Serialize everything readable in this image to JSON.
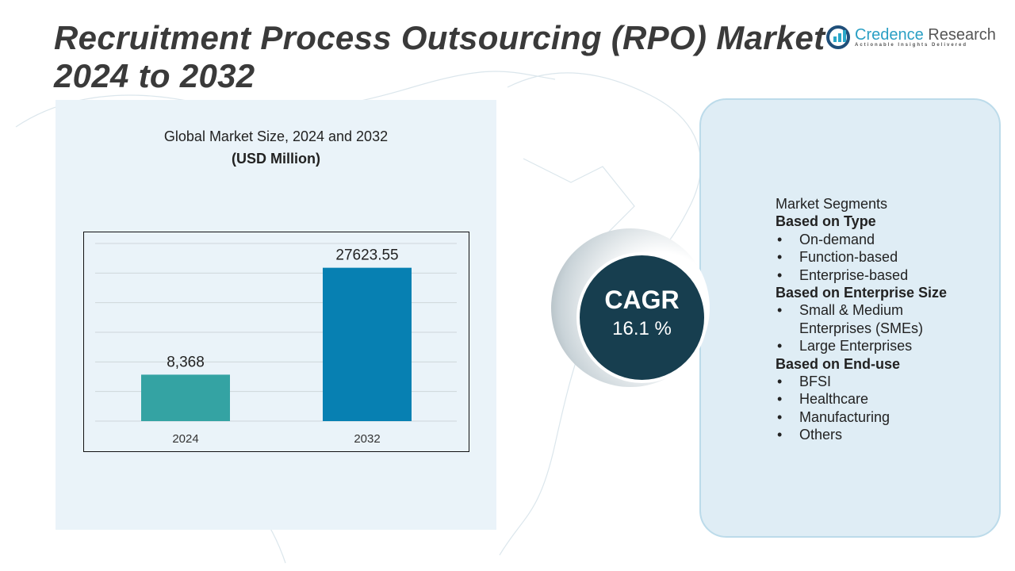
{
  "title": {
    "line1": "Recruitment Process Outsourcing (RPO) Market",
    "line2": "2024 to 2032"
  },
  "logo": {
    "name_part1": "Credence",
    "name_part2": "Research",
    "tagline": "Actionable Insights Delivered"
  },
  "chart_data": {
    "type": "bar",
    "title": "Global Market Size, 2024 and 2032",
    "subtitle": "(USD Million)",
    "categories": [
      "2024",
      "2032"
    ],
    "values": [
      8368,
      27623.55
    ],
    "data_labels": [
      "8,368",
      "27623.55"
    ],
    "colors": [
      "#34a3a3",
      "#0780b2"
    ],
    "grid": true,
    "ylim": [
      0,
      32000
    ]
  },
  "cagr": {
    "label": "CAGR",
    "value": "16.1 %"
  },
  "segments": {
    "heading": "Market Segments",
    "groups": [
      {
        "title": "Based on Type",
        "items": [
          "On-demand",
          "Function-based",
          "Enterprise-based"
        ]
      },
      {
        "title": "Based on Enterprise Size",
        "items": [
          "Small & Medium Enterprises (SMEs)",
          "Large Enterprises"
        ]
      },
      {
        "title": "Based on End-use",
        "items": [
          "BFSI",
          "Healthcare",
          "Manufacturing",
          "Others"
        ]
      }
    ]
  }
}
